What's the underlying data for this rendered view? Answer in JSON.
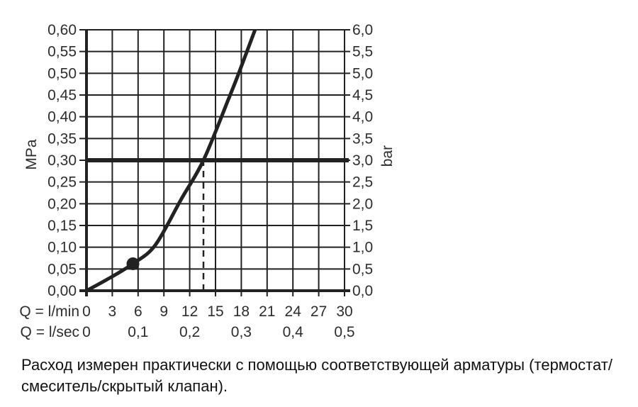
{
  "chart_data": {
    "type": "line",
    "title": "",
    "x_axis": {
      "label_primary": "Q = l/min",
      "label_secondary": "Q = l/sec",
      "ticks_lmin": [
        "0",
        "3",
        "6",
        "9",
        "12",
        "15",
        "18",
        "21",
        "24",
        "27",
        "30"
      ],
      "ticks_lsec": [
        "0",
        "0,1",
        "0,2",
        "0,3",
        "0,4",
        "0,5"
      ],
      "range_lmin": [
        0,
        30
      ],
      "grid_step_lmin": 3
    },
    "y_axis_left": {
      "label": "MPa",
      "ticks": [
        "0,60",
        "0,55",
        "0,50",
        "0,45",
        "0,40",
        "0,35",
        "0,30",
        "0,25",
        "0,20",
        "0,15",
        "0,10",
        "0,05",
        "0,00"
      ],
      "range_mpa": [
        0,
        0.6
      ],
      "grid_step_mpa": 0.05
    },
    "y_axis_right": {
      "label": "bar",
      "ticks": [
        "6,0",
        "5,5",
        "5,0",
        "4,5",
        "4,0",
        "3,5",
        "3,0",
        "2,5",
        "2,0",
        "1,5",
        "1,0",
        "0,5",
        "0,0"
      ],
      "range_bar": [
        0,
        6
      ]
    },
    "series": [
      {
        "name": "flow-pressure-curve",
        "points_lmin_mpa": [
          [
            0,
            0
          ],
          [
            2.5,
            0.027
          ],
          [
            5.4,
            0.062
          ],
          [
            8,
            0.105
          ],
          [
            11,
            0.21
          ],
          [
            13.6,
            0.3
          ],
          [
            16.5,
            0.44
          ],
          [
            17.7,
            0.5
          ],
          [
            19.6,
            0.6
          ]
        ]
      }
    ],
    "reference_line_mpa": 0.3,
    "dashed_line_lmin": 13.6,
    "marker_point": {
      "lmin": 5.4,
      "mpa": 0.062
    },
    "grid": true,
    "legend": "none"
  },
  "caption": {
    "line1": "Расход измерен практически с помощью соответствующей арматуры (термостат/",
    "line2": "смеситель/скрытый клапан)."
  },
  "colors": {
    "ink": "#222222",
    "text": "#2d2d2d",
    "background": "#ffffff"
  }
}
